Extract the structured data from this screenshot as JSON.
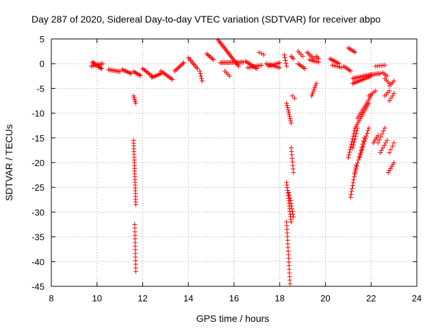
{
  "chart_data": {
    "type": "scatter",
    "title": "Day 287 of 2020, Sidereal Day-to-day VTEC variation (SDTVAR) for receiver abpo",
    "xlabel": "GPS time / hours",
    "ylabel": "SDTVAR / TECUs",
    "xlim": [
      8,
      24
    ],
    "ylim": [
      -45,
      5
    ],
    "xticks": [
      8,
      10,
      12,
      14,
      16,
      18,
      20,
      22,
      24
    ],
    "yticks": [
      5,
      0,
      -5,
      -10,
      -15,
      -20,
      -25,
      -30,
      -35,
      -40,
      -45
    ],
    "grid": true,
    "marker": "+",
    "marker_color": "#ff0000",
    "segments": [
      {
        "x0": 9.8,
        "x1": 10.2,
        "y0": 0.3,
        "y1": -1.0,
        "n": 12
      },
      {
        "x0": 9.75,
        "x1": 10.25,
        "y0": -0.5,
        "y1": 0.0,
        "n": 10
      },
      {
        "x0": 10.5,
        "x1": 11.0,
        "y0": -1.2,
        "y1": -1.6,
        "n": 10
      },
      {
        "x0": 11.1,
        "x1": 11.5,
        "y0": -1.2,
        "y1": -2.0,
        "n": 9
      },
      {
        "x0": 11.6,
        "x1": 11.9,
        "y0": -1.6,
        "y1": -2.4,
        "n": 7
      },
      {
        "x0": 12.0,
        "x1": 12.4,
        "y0": -1.0,
        "y1": -2.5,
        "n": 9
      },
      {
        "x0": 12.4,
        "x1": 12.8,
        "y0": -2.8,
        "y1": -2.0,
        "n": 8
      },
      {
        "x0": 12.8,
        "x1": 13.3,
        "y0": -1.5,
        "y1": -3.2,
        "n": 10
      },
      {
        "x0": 13.4,
        "x1": 13.8,
        "y0": -1.5,
        "y1": 0.2,
        "n": 9
      },
      {
        "x0": 14.0,
        "x1": 14.4,
        "y0": 1.2,
        "y1": -1.0,
        "n": 9
      },
      {
        "x0": 14.5,
        "x1": 14.6,
        "y0": -1.5,
        "y1": -3.5,
        "n": 5
      },
      {
        "x0": 14.8,
        "x1": 15.1,
        "y0": 2.0,
        "y1": 0.8,
        "n": 7
      },
      {
        "x0": 15.3,
        "x1": 16.2,
        "y0": 4.8,
        "y1": -0.5,
        "n": 22
      },
      {
        "x0": 15.6,
        "x1": 15.8,
        "y0": -1.5,
        "y1": -2.5,
        "n": 4
      },
      {
        "x0": 15.4,
        "x1": 16.4,
        "y0": 0.2,
        "y1": 0.3,
        "n": 20
      },
      {
        "x0": 16.5,
        "x1": 17.0,
        "y0": 0.5,
        "y1": -1.0,
        "n": 10
      },
      {
        "x0": 16.6,
        "x1": 17.2,
        "y0": -0.8,
        "y1": -0.3,
        "n": 10
      },
      {
        "x0": 17.1,
        "x1": 17.3,
        "y0": 2.3,
        "y1": 1.8,
        "n": 3
      },
      {
        "x0": 17.4,
        "x1": 18.0,
        "y0": 0.0,
        "y1": -0.8,
        "n": 10
      },
      {
        "x0": 17.5,
        "x1": 18.0,
        "y0": -0.5,
        "y1": 0.2,
        "n": 8
      },
      {
        "x0": 18.2,
        "x1": 18.3,
        "y0": 1.8,
        "y1": -0.5,
        "n": 5
      },
      {
        "x0": 18.5,
        "x1": 18.6,
        "y0": 1.5,
        "y1": 1.0,
        "n": 3
      },
      {
        "x0": 18.8,
        "x1": 19.0,
        "y0": 2.5,
        "y1": 1.5,
        "n": 4
      },
      {
        "x0": 18.8,
        "x1": 19.1,
        "y0": 0.0,
        "y1": -1.0,
        "n": 6
      },
      {
        "x0": 19.2,
        "x1": 19.5,
        "y0": 2.3,
        "y1": 1.0,
        "n": 6
      },
      {
        "x0": 19.3,
        "x1": 19.7,
        "y0": 0.8,
        "y1": 0.3,
        "n": 7
      },
      {
        "x0": 19.6,
        "x1": 19.7,
        "y0": 1.5,
        "y1": 1.0,
        "n": 3
      },
      {
        "x0": 20.2,
        "x1": 20.6,
        "y0": 1.0,
        "y1": 0.0,
        "n": 8
      },
      {
        "x0": 20.3,
        "x1": 20.7,
        "y0": -0.3,
        "y1": -0.8,
        "n": 6
      },
      {
        "x0": 20.8,
        "x1": 21.1,
        "y0": -0.5,
        "y1": -1.5,
        "n": 6
      },
      {
        "x0": 21.0,
        "x1": 21.3,
        "y0": 3.2,
        "y1": 2.3,
        "n": 6
      },
      {
        "x0": 21.2,
        "x1": 22.0,
        "y0": -3.0,
        "y1": -2.2,
        "n": 16
      },
      {
        "x0": 21.2,
        "x1": 22.0,
        "y0": -4.0,
        "y1": -2.5,
        "n": 16
      },
      {
        "x0": 22.0,
        "x1": 22.4,
        "y0": -2.2,
        "y1": -2.0,
        "n": 8
      },
      {
        "x0": 22.2,
        "x1": 22.6,
        "y0": -0.5,
        "y1": -0.3,
        "n": 6
      },
      {
        "x0": 22.5,
        "x1": 22.7,
        "y0": -1.8,
        "y1": -2.5,
        "n": 4
      },
      {
        "x0": 22.6,
        "x1": 22.8,
        "y0": -3.0,
        "y1": -4.0,
        "n": 4
      },
      {
        "x0": 22.6,
        "x1": 22.8,
        "y0": -6.5,
        "y1": -5.5,
        "n": 4
      },
      {
        "x0": 22.8,
        "x1": 23.0,
        "y0": -4.5,
        "y1": -3.5,
        "n": 4
      },
      {
        "x0": 22.8,
        "x1": 23.0,
        "y0": -7.5,
        "y1": -6.0,
        "n": 4
      },
      {
        "x0": 11.6,
        "x1": 11.7,
        "y0": -6.5,
        "y1": -8.0,
        "n": 5
      },
      {
        "x0": 11.6,
        "x1": 11.7,
        "y0": -15.5,
        "y1": -28.5,
        "n": 24
      },
      {
        "x0": 11.65,
        "x1": 11.7,
        "y0": -32.5,
        "y1": -42.0,
        "n": 14
      },
      {
        "x0": 18.3,
        "x1": 18.5,
        "y0": -8.0,
        "y1": -12.0,
        "n": 10
      },
      {
        "x0": 18.55,
        "x1": 18.65,
        "y0": -6.5,
        "y1": -7.0,
        "n": 2
      },
      {
        "x0": 18.3,
        "x1": 18.5,
        "y0": -24.0,
        "y1": -32.0,
        "n": 16
      },
      {
        "x0": 18.4,
        "x1": 18.6,
        "y0": -26.0,
        "y1": -31.0,
        "n": 10
      },
      {
        "x0": 18.5,
        "x1": 18.6,
        "y0": -17.0,
        "y1": -22.0,
        "n": 8
      },
      {
        "x0": 18.3,
        "x1": 18.45,
        "y0": -32.0,
        "y1": -44.5,
        "n": 18
      },
      {
        "x0": 19.4,
        "x1": 19.6,
        "y0": -6.5,
        "y1": -4.0,
        "n": 7
      },
      {
        "x0": 21.0,
        "x1": 21.3,
        "y0": -19.0,
        "y1": -13.0,
        "n": 12
      },
      {
        "x0": 21.2,
        "x1": 21.4,
        "y0": -17.0,
        "y1": -13.0,
        "n": 8
      },
      {
        "x0": 21.3,
        "x1": 21.9,
        "y0": -13.0,
        "y1": -8.0,
        "n": 14
      },
      {
        "x0": 21.4,
        "x1": 22.0,
        "y0": -11.0,
        "y1": -6.5,
        "n": 12
      },
      {
        "x0": 21.1,
        "x1": 21.35,
        "y0": -27.0,
        "y1": -20.5,
        "n": 12
      },
      {
        "x0": 21.3,
        "x1": 21.7,
        "y0": -22.0,
        "y1": -15.0,
        "n": 12
      },
      {
        "x0": 21.5,
        "x1": 21.9,
        "y0": -19.0,
        "y1": -13.0,
        "n": 12
      },
      {
        "x0": 21.9,
        "x1": 22.2,
        "y0": -6.5,
        "y1": -5.5,
        "n": 5
      },
      {
        "x0": 22.1,
        "x1": 22.3,
        "y0": -16.0,
        "y1": -14.5,
        "n": 5
      },
      {
        "x0": 22.3,
        "x1": 22.6,
        "y0": -16.0,
        "y1": -13.0,
        "n": 6
      },
      {
        "x0": 22.4,
        "x1": 22.7,
        "y0": -18.0,
        "y1": -15.5,
        "n": 6
      },
      {
        "x0": 22.8,
        "x1": 23.0,
        "y0": -18.0,
        "y1": -16.0,
        "n": 4
      },
      {
        "x0": 22.75,
        "x1": 23.0,
        "y0": -22.0,
        "y1": -20.0,
        "n": 6
      }
    ]
  }
}
